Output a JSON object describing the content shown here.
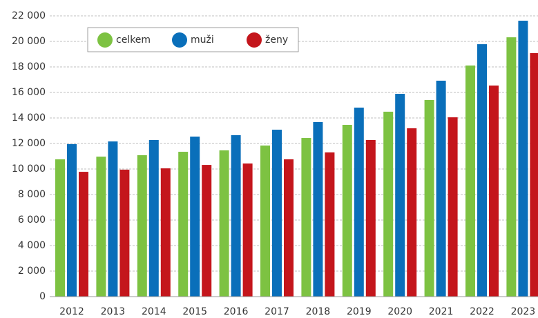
{
  "chart_data": {
    "type": "bar",
    "categories": [
      "2012",
      "2013",
      "2014",
      "2015",
      "2016",
      "2017",
      "2018",
      "2019",
      "2020",
      "2021",
      "2022",
      "2023"
    ],
    "series": [
      {
        "name": "celkem",
        "color": "#7dc242",
        "values": [
          10760,
          10970,
          11080,
          11350,
          11460,
          11840,
          12430,
          13460,
          14490,
          15410,
          18110,
          20320
        ]
      },
      {
        "name": "muži",
        "color": "#0a6fba",
        "values": [
          11950,
          12160,
          12270,
          12540,
          12650,
          13080,
          13680,
          14810,
          15890,
          16920,
          19780,
          21620
        ]
      },
      {
        "name": "ženy",
        "color": "#c4161c",
        "values": [
          9780,
          9950,
          10050,
          10320,
          10430,
          10760,
          11300,
          12270,
          13190,
          14050,
          16540,
          19080
        ]
      }
    ],
    "ylim": [
      0,
      22000
    ],
    "yticks": [
      0,
      {
        "value": 2000,
        "label": "2 000"
      },
      {
        "value": 4000,
        "label": "4 000"
      },
      {
        "value": 6000,
        "label": "6 000"
      },
      {
        "value": 8000,
        "label": "8 000"
      },
      {
        "value": 10000,
        "label": "10 000"
      },
      {
        "value": 12000,
        "label": "12 000"
      },
      {
        "value": 14000,
        "label": "14 000"
      },
      {
        "value": 16000,
        "label": "16 000"
      },
      {
        "value": 18000,
        "label": "18 000"
      },
      {
        "value": 20000,
        "label": "20 000"
      },
      {
        "value": 22000,
        "label": "22 000"
      }
    ],
    "grid": true
  }
}
